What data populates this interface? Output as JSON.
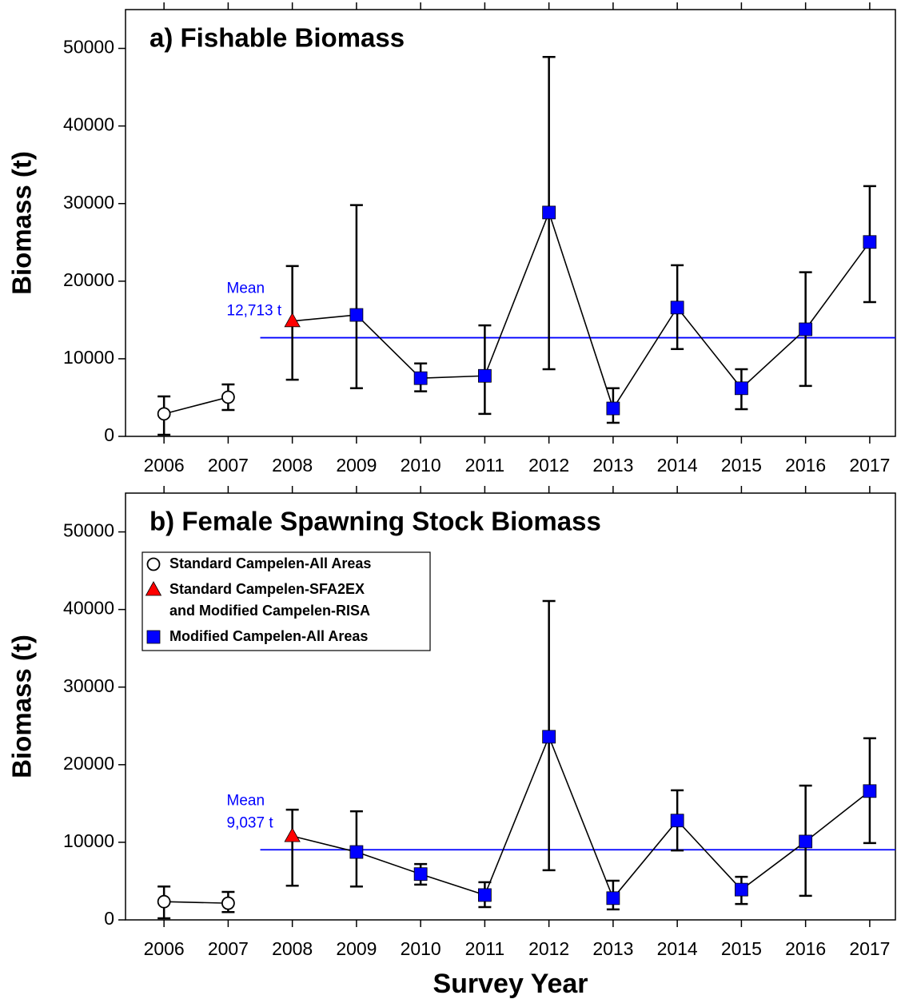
{
  "chart_data": [
    {
      "type": "line",
      "title": "a) Fishable Biomass",
      "y_label": "Biomass (t)",
      "xlim": [
        2005.4,
        2017.4
      ],
      "xticks": [
        2006,
        2007,
        2008,
        2009,
        2010,
        2011,
        2012,
        2013,
        2014,
        2015,
        2016,
        2017
      ],
      "ylim": [
        0,
        55000
      ],
      "yticks": [
        0,
        10000,
        20000,
        30000,
        40000,
        50000
      ],
      "mean": 12713,
      "mean_label": "Mean",
      "mean_value_label": "12,713 t",
      "mean_color": "#0000ff",
      "series": [
        {
          "marker": "circle",
          "color": "#ffffff",
          "x": [
            2006,
            2007
          ],
          "values": [
            2900,
            5050
          ],
          "lower": [
            200,
            3400
          ],
          "upper": [
            5150,
            6700
          ]
        },
        {
          "marker": "triangle",
          "color": "#ff0000",
          "connect_next": true,
          "x": [
            2008
          ],
          "values": [
            14850
          ],
          "lower": [
            7300
          ],
          "upper": [
            21950
          ]
        },
        {
          "marker": "square",
          "color": "#0000ff",
          "x": [
            2009,
            2010,
            2011,
            2012,
            2013,
            2014,
            2015,
            2016,
            2017
          ],
          "values": [
            15650,
            7500,
            7800,
            28850,
            3600,
            16600,
            6200,
            13800,
            25050
          ],
          "lower": [
            6200,
            5800,
            2900,
            8650,
            1750,
            11250,
            3500,
            6500,
            17300
          ],
          "upper": [
            29800,
            9400,
            14300,
            48900,
            6200,
            22050,
            8650,
            21150,
            32250
          ]
        }
      ]
    },
    {
      "type": "line",
      "title": "b) Female Spawning Stock Biomass",
      "y_label": "Biomass (t)",
      "x_label": "Survey Year",
      "legend": "upper left",
      "xlim": [
        2005.4,
        2017.4
      ],
      "xticks": [
        2006,
        2007,
        2008,
        2009,
        2010,
        2011,
        2012,
        2013,
        2014,
        2015,
        2016,
        2017
      ],
      "ylim": [
        0,
        55000
      ],
      "yticks": [
        0,
        10000,
        20000,
        30000,
        40000,
        50000
      ],
      "mean": 9037,
      "mean_label": "Mean",
      "mean_value_label": "9,037 t",
      "mean_color": "#0000ff",
      "series": [
        {
          "name": "Standard Campelen-All Areas",
          "marker": "circle",
          "color": "#ffffff",
          "x": [
            2006,
            2007
          ],
          "values": [
            2350,
            2150
          ],
          "lower": [
            200,
            1000
          ],
          "upper": [
            4300,
            3600
          ]
        },
        {
          "name": "Standard Campelen-SFA2EX\nand Modified Campelen-RISA",
          "marker": "triangle",
          "color": "#ff0000",
          "connect_next": true,
          "x": [
            2008
          ],
          "values": [
            10800
          ],
          "lower": [
            4400
          ],
          "upper": [
            14200
          ]
        },
        {
          "name": "Modified Campelen-All Areas",
          "marker": "square",
          "color": "#0000ff",
          "x": [
            2009,
            2010,
            2011,
            2012,
            2013,
            2014,
            2015,
            2016,
            2017
          ],
          "values": [
            8750,
            5900,
            3200,
            23600,
            2800,
            12800,
            3900,
            10100,
            16600
          ],
          "lower": [
            4300,
            4550,
            1650,
            6400,
            1350,
            8950,
            2050,
            3100,
            9900
          ],
          "upper": [
            14000,
            7200,
            4850,
            41100,
            5050,
            16700,
            5550,
            17300,
            23400
          ]
        }
      ]
    }
  ]
}
